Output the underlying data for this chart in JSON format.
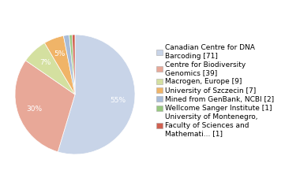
{
  "labels": [
    "Canadian Centre for DNA\nBarcoding [71]",
    "Centre for Biodiversity\nGenomics [39]",
    "Macrogen, Europe [9]",
    "University of Szczecin [7]",
    "Mined from GenBank, NCBI [2]",
    "Wellcome Sanger Institute [1]",
    "University of Montenegro,\nFaculty of Sciences and\nMathemati... [1]"
  ],
  "values": [
    71,
    39,
    9,
    7,
    2,
    1,
    1
  ],
  "colors": [
    "#c8d4e8",
    "#e8a898",
    "#d4e0a0",
    "#f0b468",
    "#a8bcd8",
    "#98c880",
    "#d06050"
  ],
  "pct_color": "white",
  "autopct_fontsize": 6.5,
  "legend_fontsize": 6.5,
  "background_color": "#ffffff",
  "startangle": 90,
  "pctdistance": 0.72
}
